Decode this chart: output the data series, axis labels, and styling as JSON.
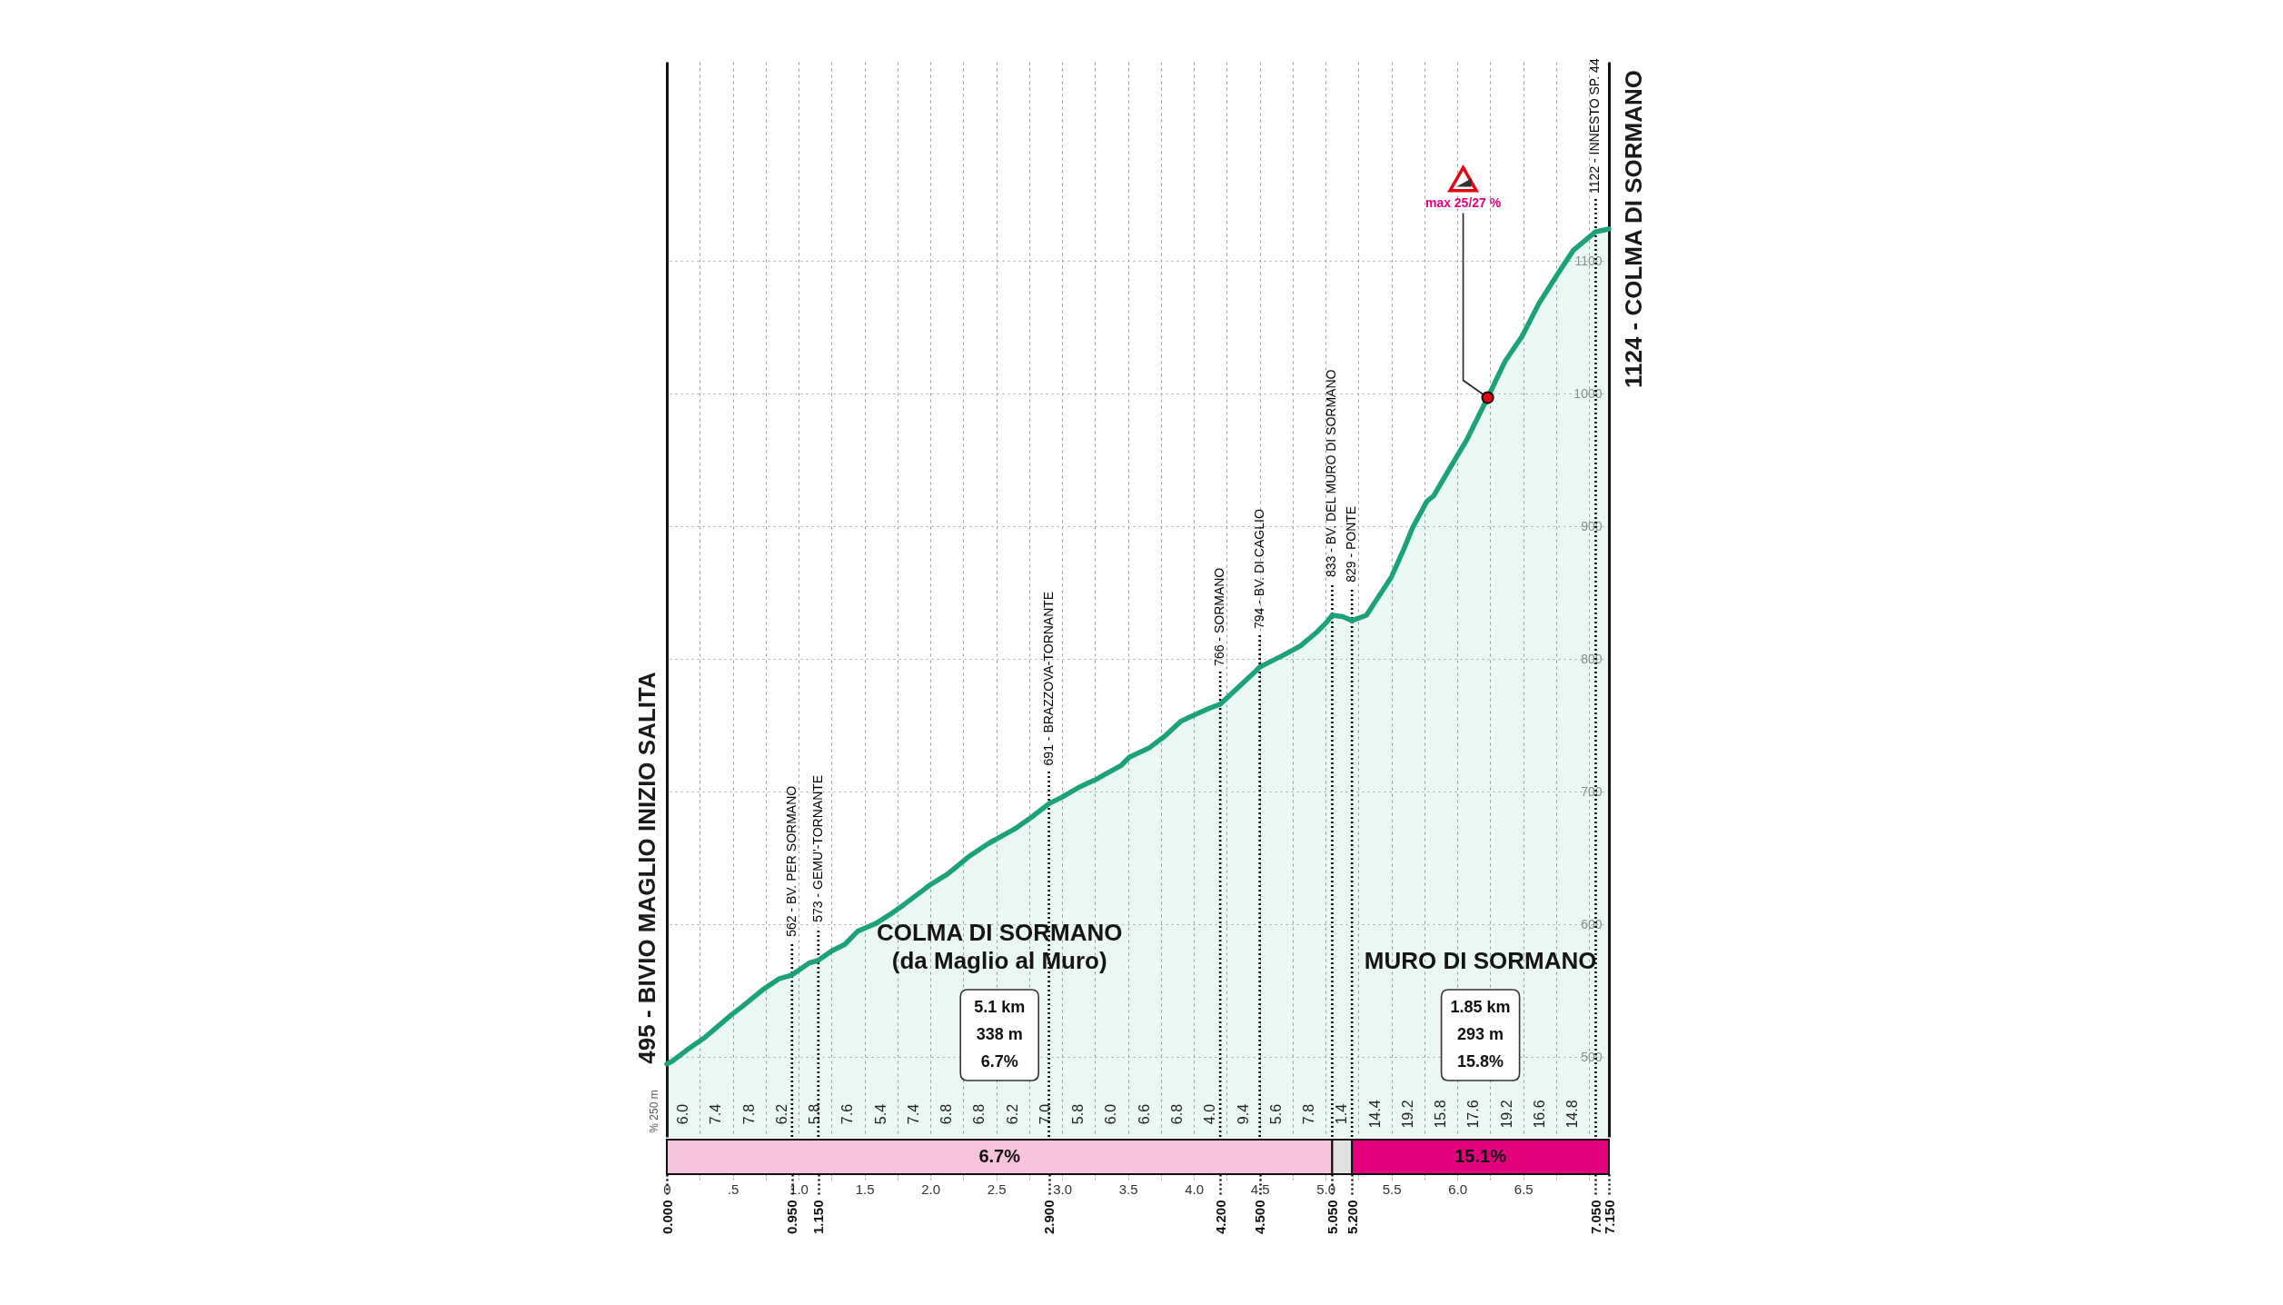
{
  "chart_data": [
    {
      "type": "area",
      "x": [
        0,
        0.04,
        0.16,
        0.29,
        0.42,
        0.49,
        0.57,
        0.73,
        0.85,
        0.95,
        1.08,
        1.15,
        1.25,
        1.35,
        1.45,
        1.52,
        1.59,
        1.7,
        1.8,
        2,
        2.13,
        2.29,
        2.44,
        2.64,
        2.77,
        2.9,
        3,
        3.14,
        3.27,
        3.45,
        3.51,
        3.66,
        3.78,
        3.9,
        4.03,
        4.12,
        4.2,
        4.33,
        4.46,
        4.5,
        4.58,
        4.68,
        4.81,
        4.93,
        5.01,
        5.05,
        5.13,
        5.2,
        5.31,
        5.5,
        5.59,
        5.66,
        5.77,
        5.82,
        5.92,
        6.07,
        6.23,
        6.36,
        6.49,
        6.62,
        6.76,
        6.88,
        7.05,
        7.15
      ],
      "series": [
        {
          "color": "#1ba27a",
          "values": [
            495,
            497,
            506,
            515,
            526,
            532,
            538,
            551,
            559,
            562,
            571,
            573,
            580,
            585,
            595,
            598,
            601,
            608,
            615,
            630,
            638,
            651,
            661,
            672,
            681,
            691,
            696,
            704,
            710,
            720,
            726,
            733,
            742,
            753,
            759,
            763,
            766,
            778,
            790,
            794,
            798,
            803,
            810,
            820,
            828,
            833,
            832,
            829,
            833,
            862,
            882,
            899,
            919,
            923,
            940,
            965,
            997,
            1024,
            1043,
            1068,
            1090,
            1108,
            1122,
            1124
          ]
        }
      ],
      "xlim": [
        0,
        7.15
      ],
      "ylim": [
        440,
        1250
      ],
      "xticks": [
        {
          "value": 0,
          "label": null
        },
        {
          "value": 0.25,
          "label": null
        },
        {
          "value": 0.5,
          "label": null
        },
        {
          "value": 0.75,
          "label": null
        },
        {
          "value": 1,
          "label": null
        },
        {
          "value": 1.25,
          "label": null
        },
        {
          "value": 1.5,
          "label": null
        },
        {
          "value": 1.75,
          "label": null
        },
        {
          "value": 2,
          "label": null
        },
        {
          "value": 2.25,
          "label": null
        },
        {
          "value": 2.5,
          "label": null
        },
        {
          "value": 2.75,
          "label": null
        },
        {
          "value": 3,
          "label": null
        },
        {
          "value": 3.25,
          "label": null
        },
        {
          "value": 3.5,
          "label": null
        },
        {
          "value": 3.75,
          "label": null
        },
        {
          "value": 4,
          "label": null
        },
        {
          "value": 4.25,
          "label": null
        },
        {
          "value": 4.5,
          "label": null
        },
        {
          "value": 4.75,
          "label": null
        },
        {
          "value": 5,
          "label": null
        },
        {
          "value": 5.25,
          "label": null
        },
        {
          "value": 5.5,
          "label": null
        },
        {
          "value": 5.75,
          "label": null
        },
        {
          "value": 6,
          "label": null
        },
        {
          "value": 6.25,
          "label": null
        },
        {
          "value": 6.5,
          "label": null
        },
        {
          "value": 6.75,
          "label": null
        },
        {
          "value": 7,
          "label": null
        }
      ],
      "yticks": [
        500,
        600,
        700,
        800,
        900,
        1000,
        1100
      ],
      "grid": true,
      "tick_labels": "y",
      "ref_lines": [
        {
          "axis": "x",
          "value": 0.95,
          "label": "562 - BV. PER SORMANO",
          "color": "#000000",
          "line_style": "dotted"
        },
        {
          "axis": "x",
          "value": 1.15,
          "label": "573 - GEMU'-TORNANTE",
          "color": "#000000",
          "line_style": "dotted"
        },
        {
          "axis": "x",
          "value": 2.9,
          "label": "691 - BRAZZOVA-TORNANTE",
          "color": "#000000",
          "line_style": "dotted"
        },
        {
          "axis": "x",
          "value": 4.2,
          "label": "766 - SORMANO",
          "color": "#000000",
          "line_style": "dotted"
        },
        {
          "axis": "x",
          "value": 4.5,
          "label": "794 - BV. DI CAGLIO",
          "color": "#000000",
          "line_style": "dotted"
        },
        {
          "axis": "x",
          "value": 5.05,
          "label": "833 - BV. DEL MURO DI SORMANO",
          "color": "#000000",
          "line_style": "dotted"
        },
        {
          "axis": "x",
          "value": 5.2,
          "label": "829 - PONTE",
          "color": "#000000",
          "line_style": "dotted"
        },
        {
          "axis": "x",
          "value": 7.05,
          "label": "1122 - INNESTO SP. 44",
          "color": "#000000",
          "line_style": "dotted"
        }
      ],
      "annotations": [
        {
          "text": "495 - BIVIO MAGLIO INIZIO SALITA",
          "x": 0,
          "y": 495
        },
        {
          "text": "1124 - COLMA DI SORMANO",
          "x": 7.15,
          "y": 1124
        },
        {
          "text": "max 25/27 %",
          "x": 6.23,
          "y": 997
        },
        "COLMA DI SORMANO\n(da Maglio al Muro)",
        "MURO DI SORMANO",
        "5.1 km\n338 m\n6.7%",
        "1.85 km\n293 m\n15.8%",
        "% 250 m",
        "6.0",
        "7.4",
        "7.8",
        "6.2",
        "5.8",
        "7.6",
        "5.4",
        "7.4",
        "6.8",
        "6.8",
        "6.2",
        "7.0",
        "5.8",
        "6.0",
        "6.6",
        "6.8",
        "4.0",
        "9.4",
        "5.6",
        "7.8",
        "1.4",
        "14.4",
        "19.2",
        "15.8",
        "17.6",
        "19.2",
        "16.6",
        "14.8"
      ]
    },
    {
      "type": "bar",
      "orientation": "horizontal",
      "stacked": true,
      "categories": [
        null
      ],
      "series": [
        {
          "color": "#f5c3dc",
          "values": [
            5.05
          ]
        },
        {
          "color": "#e1e1e1",
          "values": [
            0.15
          ]
        },
        {
          "color": "#e4007c",
          "values": [
            1.95
          ]
        }
      ],
      "xlim": [
        0,
        7.15
      ],
      "xticks": [
        0,
        {
          "value": 0.25,
          "label": null
        },
        {
          "value": 0.5,
          "label": ".5"
        },
        {
          "value": 0.75,
          "label": null
        },
        {
          "value": 1,
          "label": "1.0"
        },
        {
          "value": 1.25,
          "label": null
        },
        1.5,
        {
          "value": 1.75,
          "label": null
        },
        {
          "value": 2,
          "label": "2.0"
        },
        {
          "value": 2.25,
          "label": null
        },
        2.5,
        {
          "value": 2.75,
          "label": null
        },
        {
          "value": 3,
          "label": "3.0"
        },
        {
          "value": 3.25,
          "label": null
        },
        3.5,
        {
          "value": 3.75,
          "label": null
        },
        {
          "value": 4,
          "label": "4.0"
        },
        {
          "value": 4.25,
          "label": null
        },
        4.5,
        {
          "value": 4.75,
          "label": null
        },
        {
          "value": 5,
          "label": "5.0"
        },
        {
          "value": 5.25,
          "label": null
        },
        5.5,
        {
          "value": 5.75,
          "label": null
        },
        {
          "value": 6,
          "label": "6.0"
        },
        {
          "value": 6.25,
          "label": null
        },
        6.5,
        {
          "value": 6.75,
          "label": null
        },
        {
          "value": 7,
          "label": null
        }
      ],
      "x2lim": [
        0,
        7.15
      ],
      "x2ticks": [
        {
          "value": 0,
          "label": "0.000"
        },
        {
          "value": 0.95,
          "label": "0.950"
        },
        {
          "value": 1.15,
          "label": "1.150"
        },
        {
          "value": 2.9,
          "label": "2.900"
        },
        {
          "value": 4.2,
          "label": "4.200"
        },
        {
          "value": 4.5,
          "label": "4.500"
        },
        {
          "value": 5.05,
          "label": "5.050"
        },
        {
          "value": 5.2,
          "label": "5.200"
        },
        {
          "value": 7.05,
          "label": "7.050"
        },
        {
          "value": 7.15,
          "label": "7.150"
        }
      ],
      "annotations": [
        "6.7%",
        "15.1%"
      ]
    }
  ]
}
